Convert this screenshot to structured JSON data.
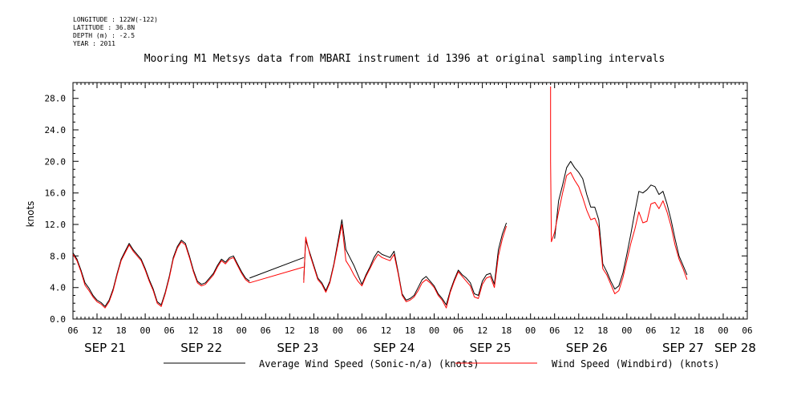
{
  "meta": {
    "longitude": "LONGITUDE : 122W(-122)",
    "latitude": "LATITUDE : 36.8N",
    "depth": "DEPTH (m) : -2.5",
    "year": "YEAR : 2011"
  },
  "chart_data": {
    "type": "line",
    "title": "Mooring M1 Metsys data from MBARI instrument id 1396 at original sampling intervals",
    "ylabel": "knots",
    "xlabel": "",
    "ylim": [
      0,
      30
    ],
    "y_ticks": [
      "0.0",
      "4.0",
      "8.0",
      "12.0",
      "16.0",
      "20.0",
      "24.0",
      "28.0"
    ],
    "x_unit": "hours since 2011-09-21 00:00",
    "xlim": [
      6,
      174
    ],
    "x_hour_ticks": [
      6,
      12,
      18,
      24,
      30,
      36,
      42,
      48,
      54,
      60,
      66,
      72,
      78,
      84,
      90,
      96,
      102,
      108,
      114,
      120,
      126,
      132,
      138,
      144,
      150,
      156,
      162,
      168,
      174
    ],
    "x_hour_labels": [
      "06",
      "12",
      "18",
      "00",
      "06",
      "12",
      "18",
      "00",
      "06",
      "12",
      "18",
      "00",
      "06",
      "12",
      "18",
      "00",
      "06",
      "12",
      "18",
      "00",
      "06",
      "12",
      "18",
      "00",
      "06",
      "12",
      "18",
      "00",
      "06"
    ],
    "day_labels": [
      {
        "x": 14,
        "label": "SEP 21"
      },
      {
        "x": 38,
        "label": "SEP 22"
      },
      {
        "x": 62,
        "label": "SEP 23"
      },
      {
        "x": 86,
        "label": "SEP 24"
      },
      {
        "x": 110,
        "label": "SEP 25"
      },
      {
        "x": 134,
        "label": "SEP 26"
      },
      {
        "x": 158,
        "label": "SEP 27"
      },
      {
        "x": 171,
        "label": "SEP 28"
      }
    ],
    "legend": "bottom",
    "series": [
      {
        "name": "Average Wind Speed (Sonic-n/a) (knots)",
        "color": "#000000",
        "segments": [
          [
            [
              6,
              8.4
            ],
            [
              7,
              7.6
            ],
            [
              8,
              6.2
            ],
            [
              9,
              4.6
            ],
            [
              10,
              3.9
            ],
            [
              11,
              3.0
            ],
            [
              12,
              2.4
            ],
            [
              13,
              2.1
            ],
            [
              14,
              1.6
            ],
            [
              15,
              2.4
            ],
            [
              16,
              3.8
            ],
            [
              17,
              5.8
            ],
            [
              18,
              7.6
            ],
            [
              19,
              8.6
            ],
            [
              20,
              9.6
            ],
            [
              21,
              8.8
            ],
            [
              22,
              8.2
            ],
            [
              23,
              7.6
            ],
            [
              24,
              6.4
            ],
            [
              25,
              5.0
            ],
            [
              26,
              3.8
            ],
            [
              27,
              2.2
            ],
            [
              28,
              1.8
            ],
            [
              29,
              3.4
            ],
            [
              30,
              5.4
            ],
            [
              31,
              7.8
            ],
            [
              32,
              9.2
            ],
            [
              33,
              10.0
            ],
            [
              34,
              9.6
            ],
            [
              35,
              8.0
            ],
            [
              36,
              6.2
            ],
            [
              37,
              4.8
            ],
            [
              38,
              4.4
            ],
            [
              39,
              4.6
            ],
            [
              40,
              5.2
            ],
            [
              41,
              5.8
            ],
            [
              42,
              6.8
            ],
            [
              43,
              7.6
            ],
            [
              44,
              7.2
            ],
            [
              45,
              7.8
            ],
            [
              46,
              8.0
            ],
            [
              47,
              7.0
            ],
            [
              48,
              6.0
            ],
            [
              49,
              5.2
            ],
            [
              50,
              4.8
            ]
          ],
          [
            [
              50,
              5.2
            ],
            [
              63.5,
              7.8
            ]
          ],
          [
            [
              63.5,
              5.0
            ],
            [
              64,
              10.0
            ],
            [
              65,
              8.4
            ],
            [
              66,
              6.8
            ],
            [
              67,
              5.2
            ],
            [
              68,
              4.6
            ],
            [
              69,
              3.6
            ],
            [
              70,
              4.8
            ],
            [
              71,
              7.0
            ],
            [
              72,
              9.8
            ],
            [
              73,
              12.6
            ],
            [
              74,
              8.8
            ],
            [
              75,
              7.8
            ],
            [
              76,
              6.8
            ],
            [
              77,
              5.6
            ],
            [
              78,
              4.4
            ],
            [
              79,
              5.6
            ],
            [
              80,
              6.6
            ],
            [
              81,
              7.8
            ],
            [
              82,
              8.6
            ],
            [
              83,
              8.2
            ],
            [
              84,
              8.0
            ],
            [
              85,
              7.8
            ],
            [
              86,
              8.6
            ],
            [
              87,
              6.0
            ],
            [
              88,
              3.2
            ],
            [
              89,
              2.4
            ],
            [
              90,
              2.6
            ],
            [
              91,
              3.0
            ],
            [
              92,
              4.0
            ],
            [
              93,
              5.0
            ],
            [
              94,
              5.4
            ],
            [
              95,
              4.8
            ],
            [
              96,
              4.2
            ],
            [
              97,
              3.2
            ],
            [
              98,
              2.6
            ],
            [
              99,
              1.8
            ],
            [
              100,
              3.6
            ],
            [
              101,
              5.0
            ],
            [
              102,
              6.2
            ],
            [
              103,
              5.6
            ],
            [
              104,
              5.2
            ],
            [
              105,
              4.6
            ],
            [
              106,
              3.2
            ],
            [
              107,
              3.0
            ],
            [
              108,
              4.8
            ],
            [
              109,
              5.6
            ],
            [
              110,
              5.8
            ],
            [
              111,
              4.4
            ],
            [
              112,
              8.8
            ],
            [
              113,
              10.8
            ],
            [
              114,
              12.2
            ]
          ],
          [
            [
              126,
              10.2
            ],
            [
              127,
              15.0
            ],
            [
              128,
              17.0
            ],
            [
              129,
              19.2
            ],
            [
              130,
              20.0
            ],
            [
              131,
              19.2
            ],
            [
              132,
              18.6
            ],
            [
              133,
              17.8
            ],
            [
              134,
              15.8
            ],
            [
              135,
              14.2
            ],
            [
              136,
              14.2
            ],
            [
              137,
              12.6
            ],
            [
              138,
              7.0
            ],
            [
              139,
              6.0
            ],
            [
              140,
              4.8
            ],
            [
              141,
              3.8
            ],
            [
              142,
              4.2
            ],
            [
              143,
              5.8
            ],
            [
              144,
              8.2
            ],
            [
              145,
              10.8
            ],
            [
              146,
              13.6
            ],
            [
              147,
              16.2
            ],
            [
              148,
              16.0
            ],
            [
              149,
              16.4
            ],
            [
              150,
              17.0
            ],
            [
              151,
              16.8
            ],
            [
              152,
              15.8
            ],
            [
              153,
              16.2
            ],
            [
              154,
              14.6
            ],
            [
              155,
              12.6
            ],
            [
              156,
              10.2
            ],
            [
              157,
              8.0
            ],
            [
              158,
              6.8
            ],
            [
              159,
              5.6
            ]
          ]
        ]
      },
      {
        "name": "Wind Speed (Windbird) (knots)",
        "color": "#ff0000",
        "segments": [
          [
            [
              6,
              8.2
            ],
            [
              7,
              7.4
            ],
            [
              8,
              6.0
            ],
            [
              9,
              4.3
            ],
            [
              10,
              3.6
            ],
            [
              11,
              2.8
            ],
            [
              12,
              2.2
            ],
            [
              13,
              1.9
            ],
            [
              14,
              1.4
            ],
            [
              15,
              2.2
            ],
            [
              16,
              3.6
            ],
            [
              17,
              5.6
            ],
            [
              18,
              7.4
            ],
            [
              19,
              8.4
            ],
            [
              20,
              9.4
            ],
            [
              21,
              8.6
            ],
            [
              22,
              8.0
            ],
            [
              23,
              7.4
            ],
            [
              24,
              6.2
            ],
            [
              25,
              4.8
            ],
            [
              26,
              3.6
            ],
            [
              27,
              2.0
            ],
            [
              28,
              1.6
            ],
            [
              29,
              3.2
            ],
            [
              30,
              5.2
            ],
            [
              31,
              7.6
            ],
            [
              32,
              9.0
            ],
            [
              33,
              9.8
            ],
            [
              34,
              9.4
            ],
            [
              35,
              7.8
            ],
            [
              36,
              6.0
            ],
            [
              37,
              4.6
            ],
            [
              38,
              4.2
            ],
            [
              39,
              4.4
            ],
            [
              40,
              5.0
            ],
            [
              41,
              5.6
            ],
            [
              42,
              6.6
            ],
            [
              43,
              7.4
            ],
            [
              44,
              7.0
            ],
            [
              45,
              7.6
            ],
            [
              46,
              7.8
            ],
            [
              47,
              6.8
            ],
            [
              48,
              5.8
            ],
            [
              49,
              5.0
            ],
            [
              50,
              4.6
            ]
          ],
          [
            [
              50,
              4.6
            ],
            [
              63.5,
              6.6
            ]
          ],
          [
            [
              63.5,
              4.6
            ],
            [
              64,
              10.4
            ],
            [
              65,
              8.2
            ],
            [
              66,
              6.6
            ],
            [
              67,
              5.0
            ],
            [
              68,
              4.4
            ],
            [
              69,
              3.4
            ],
            [
              70,
              4.6
            ],
            [
              71,
              6.8
            ],
            [
              72,
              9.4
            ],
            [
              73,
              12.0
            ],
            [
              74,
              7.4
            ],
            [
              75,
              6.6
            ],
            [
              76,
              5.6
            ],
            [
              77,
              4.8
            ],
            [
              78,
              4.2
            ],
            [
              79,
              5.4
            ],
            [
              80,
              6.4
            ],
            [
              81,
              7.4
            ],
            [
              82,
              8.2
            ],
            [
              83,
              7.8
            ],
            [
              84,
              7.6
            ],
            [
              85,
              7.4
            ],
            [
              86,
              8.2
            ],
            [
              87,
              5.8
            ],
            [
              88,
              3.0
            ],
            [
              89,
              2.2
            ],
            [
              90,
              2.4
            ],
            [
              91,
              2.8
            ],
            [
              92,
              3.6
            ],
            [
              93,
              4.6
            ],
            [
              94,
              5.0
            ],
            [
              95,
              4.6
            ],
            [
              96,
              4.0
            ],
            [
              97,
              3.0
            ],
            [
              98,
              2.4
            ],
            [
              99,
              1.4
            ],
            [
              100,
              3.4
            ],
            [
              101,
              4.8
            ],
            [
              102,
              6.0
            ],
            [
              103,
              5.4
            ],
            [
              104,
              4.8
            ],
            [
              105,
              4.2
            ],
            [
              106,
              2.8
            ],
            [
              107,
              2.6
            ],
            [
              108,
              4.4
            ],
            [
              109,
              5.2
            ],
            [
              110,
              5.4
            ],
            [
              111,
              4.0
            ],
            [
              112,
              8.0
            ],
            [
              113,
              10.2
            ],
            [
              114,
              11.8
            ]
          ],
          [
            [
              125,
              29.5
            ],
            [
              125,
              20.0
            ],
            [
              125.2,
              9.8
            ],
            [
              126,
              11.0
            ],
            [
              127,
              13.6
            ],
            [
              128,
              16.0
            ],
            [
              129,
              18.2
            ],
            [
              130,
              18.6
            ],
            [
              131,
              17.6
            ],
            [
              132,
              16.8
            ],
            [
              133,
              15.4
            ],
            [
              134,
              13.8
            ],
            [
              135,
              12.6
            ],
            [
              136,
              12.8
            ],
            [
              137,
              11.6
            ],
            [
              138,
              6.4
            ],
            [
              139,
              5.6
            ],
            [
              140,
              4.4
            ],
            [
              141,
              3.2
            ],
            [
              142,
              3.6
            ],
            [
              143,
              5.2
            ],
            [
              144,
              7.4
            ],
            [
              145,
              9.6
            ],
            [
              146,
              11.4
            ],
            [
              147,
              13.6
            ],
            [
              148,
              12.2
            ],
            [
              149,
              12.4
            ],
            [
              150,
              14.6
            ],
            [
              151,
              14.8
            ],
            [
              152,
              14.0
            ],
            [
              153,
              15.0
            ],
            [
              154,
              13.6
            ],
            [
              155,
              11.8
            ],
            [
              156,
              9.4
            ],
            [
              157,
              7.6
            ],
            [
              158,
              6.4
            ],
            [
              159,
              5.0
            ]
          ]
        ]
      }
    ]
  }
}
